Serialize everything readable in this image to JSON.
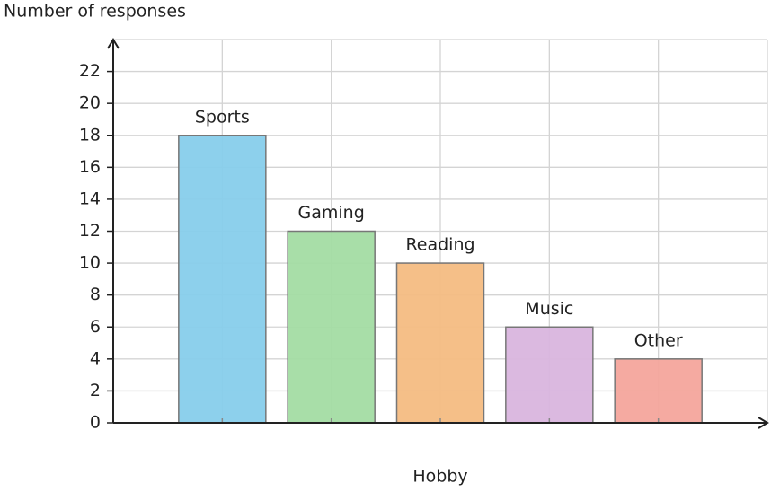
{
  "chart_data": {
    "type": "bar",
    "ylabel": "Number of responses",
    "xlabel": "Hobby",
    "categories": [
      "Sports",
      "Gaming",
      "Reading",
      "Music",
      "Other"
    ],
    "values": [
      18,
      12,
      10,
      6,
      4
    ],
    "colors": [
      "#87ceeb",
      "#a3dca3",
      "#f4bc82",
      "#d9b5de",
      "#f4a59c"
    ],
    "ylim": [
      0,
      24
    ],
    "yticks": [
      0,
      2,
      4,
      6,
      8,
      10,
      12,
      14,
      16,
      18,
      20,
      22
    ],
    "grid": true
  }
}
